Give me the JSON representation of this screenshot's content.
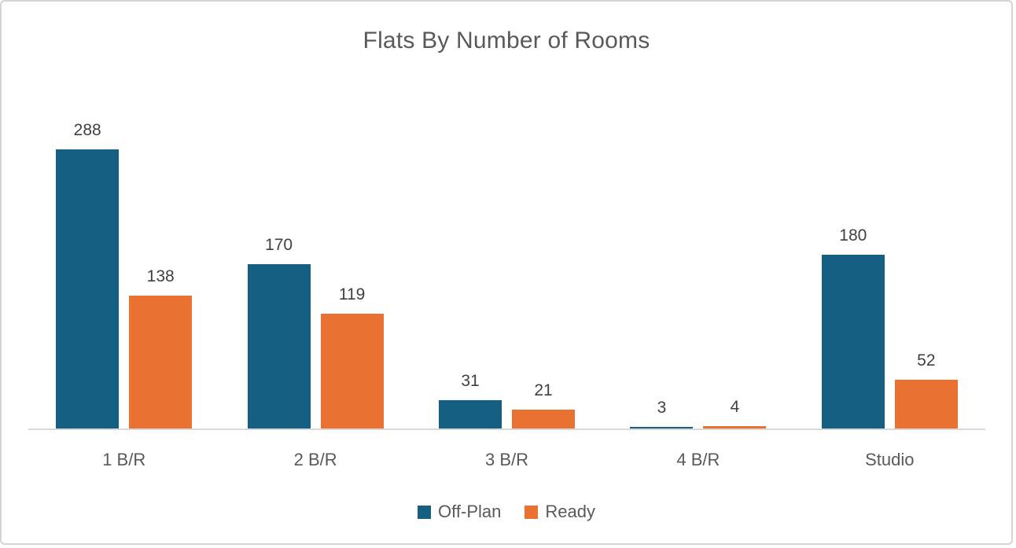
{
  "chart_data": {
    "type": "bar",
    "title": "Flats By Number of Rooms",
    "categories": [
      "1 B/R",
      "2 B/R",
      "3 B/R",
      "4 B/R",
      "Studio"
    ],
    "series": [
      {
        "name": "Off-Plan",
        "color": "#156082",
        "values": [
          288,
          170,
          31,
          3,
          180
        ]
      },
      {
        "name": "Ready",
        "color": "#E97132",
        "values": [
          138,
          119,
          21,
          4,
          52
        ]
      }
    ],
    "ylim": [
      0,
      300
    ],
    "xlabel": "",
    "ylabel": "",
    "grid": false,
    "data_labels": true,
    "legend_position": "bottom",
    "axis_line_color": "#d9d9d9",
    "title_color": "#595959",
    "label_color": "#404040",
    "category_color": "#595959"
  }
}
